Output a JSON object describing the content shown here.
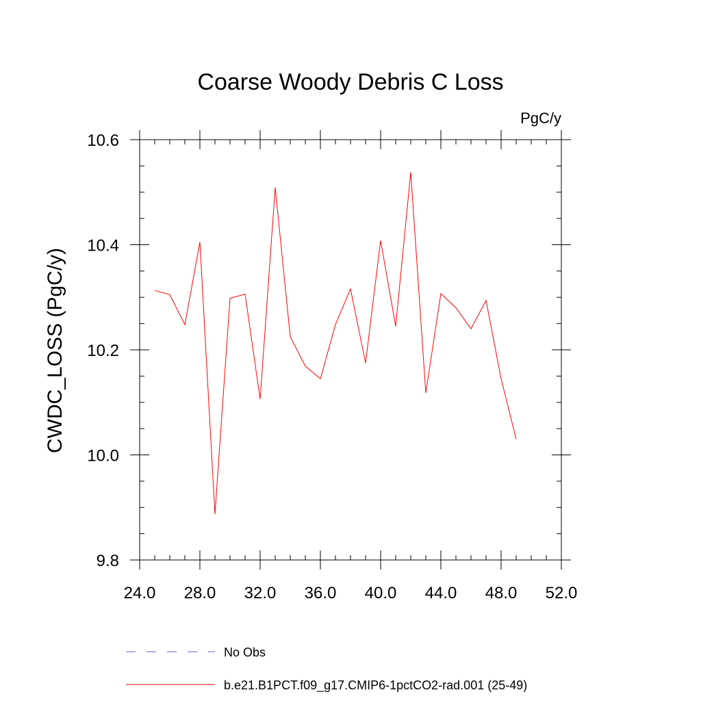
{
  "chart_data": {
    "type": "line",
    "title": "Coarse Woody Debris C Loss",
    "unit_label": "PgC/y",
    "ylabel": "CWDC_LOSS  (PgC/y)",
    "xlabel": "",
    "xlim": [
      24.0,
      52.0
    ],
    "ylim": [
      9.8,
      10.6
    ],
    "x_ticks": [
      24.0,
      28.0,
      32.0,
      36.0,
      40.0,
      44.0,
      48.0,
      52.0
    ],
    "x_tick_labels": [
      "24.0",
      "28.0",
      "32.0",
      "36.0",
      "40.0",
      "44.0",
      "48.0",
      "52.0"
    ],
    "y_ticks": [
      9.8,
      10.0,
      10.2,
      10.4,
      10.6
    ],
    "y_tick_labels": [
      "9.8",
      "10.0",
      "10.2",
      "10.4",
      "10.6"
    ],
    "grid": false,
    "series": [
      {
        "name": "b.e21.B1PCT.f09_g17.CMIP6-1pctCO2-rad.001 (25-49)",
        "color": "#ff0000",
        "style": "solid",
        "x": [
          25,
          26,
          27,
          28,
          29,
          30,
          31,
          32,
          33,
          34,
          35,
          36,
          37,
          38,
          39,
          40,
          41,
          42,
          43,
          44,
          45,
          46,
          47,
          48,
          49
        ],
        "y": [
          10.313,
          10.305,
          10.248,
          10.405,
          9.887,
          10.298,
          10.306,
          10.106,
          10.509,
          10.225,
          10.169,
          10.145,
          10.248,
          10.316,
          10.175,
          10.408,
          10.245,
          10.538,
          10.118,
          10.307,
          10.28,
          10.24,
          10.294,
          10.145,
          10.03
        ]
      }
    ],
    "legend": [
      {
        "label": "No Obs",
        "color": "#6a5acd",
        "style": "dashed"
      },
      {
        "label": "b.e21.B1PCT.f09_g17.CMIP6-1pctCO2-rad.001 (25-49)",
        "color": "#ff0000",
        "style": "solid"
      }
    ],
    "legend_placement": "bottom"
  }
}
